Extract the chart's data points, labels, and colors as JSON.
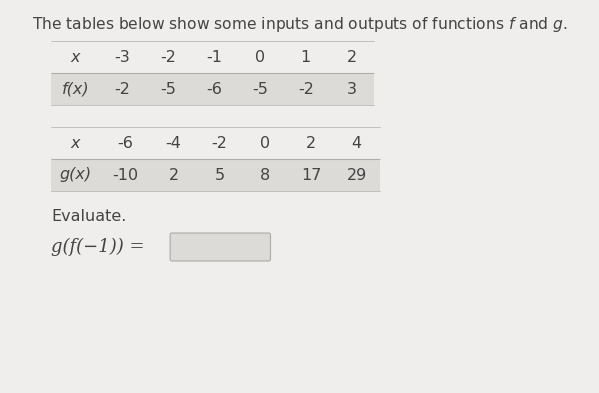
{
  "title": "The tables below show some inputs and outputs of functions $f$ and $g$.",
  "table1_header": [
    "x",
    "-3",
    "-2",
    "-1",
    "0",
    "1",
    "2"
  ],
  "table1_row": [
    "f(x)",
    "-2",
    "-5",
    "-6",
    "-5",
    "-2",
    "3"
  ],
  "table2_header": [
    "x",
    "-6",
    "-4",
    "-2",
    "0",
    "2",
    "4"
  ],
  "table2_row": [
    "g(x)",
    "-10",
    "2",
    "5",
    "8",
    "17",
    "29"
  ],
  "evaluate_label": "Evaluate.",
  "expression_label": "g(f(−1)) =",
  "bg_color": "#f0eeec",
  "header_row_bg": "#f0eeec",
  "data_row_bg": "#dddbd8",
  "table_line_color": "#b0aeab",
  "text_color": "#444444",
  "input_box_color": "#dddbd8",
  "input_box_border": "#aaaaaa"
}
